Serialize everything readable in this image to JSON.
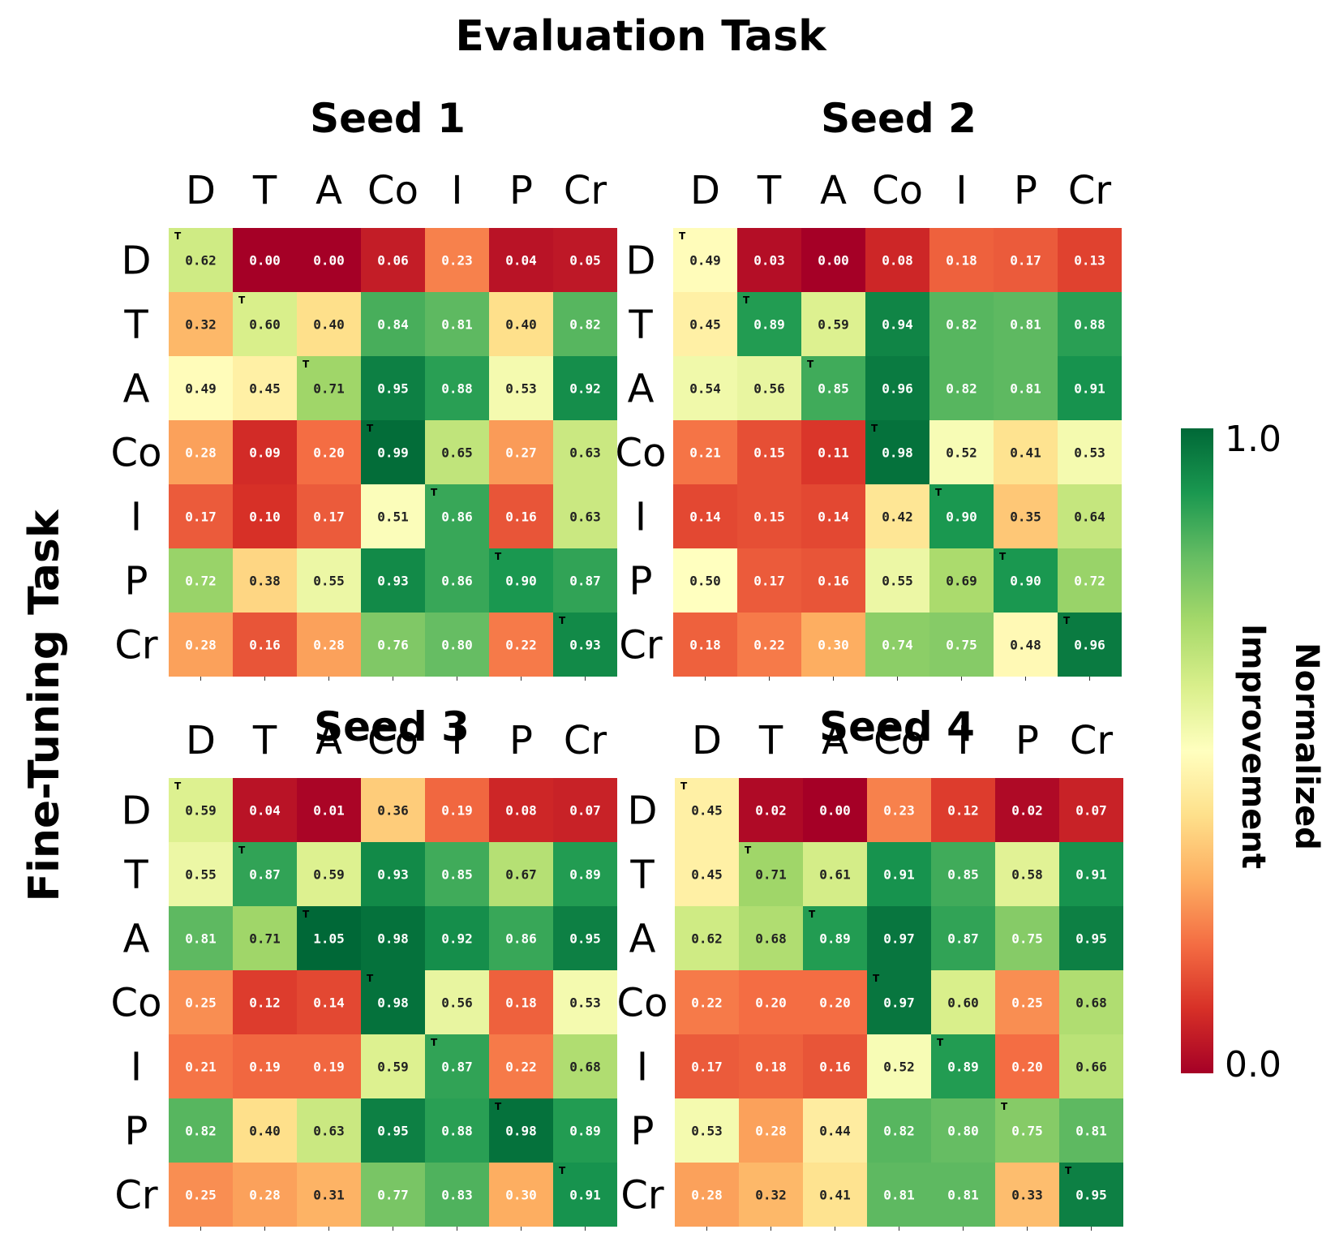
{
  "chart_data": {
    "type": "heatmap",
    "title": "Evaluation Task",
    "ylabel": "Fine-Tuning Task",
    "row_labels": [
      "D",
      "T",
      "A",
      "Co",
      "I",
      "P",
      "Cr"
    ],
    "col_labels": [
      "D",
      "T",
      "A",
      "Co",
      "I",
      "P",
      "Cr"
    ],
    "diagonal_marker": "T",
    "colorbar": {
      "label_line1": "Normalized",
      "label_line2": "Improvement",
      "min": 0.0,
      "max": 1.0,
      "min_label": "0.0",
      "max_label": "1.0",
      "colormap": "RdYlGn"
    },
    "panels": [
      {
        "title": "Seed 1",
        "values": [
          [
            "0.62",
            "0.00",
            "0.00",
            "0.06",
            "0.23",
            "0.04",
            "0.05"
          ],
          [
            "0.32",
            "0.60",
            "0.40",
            "0.84",
            "0.81",
            "0.40",
            "0.82"
          ],
          [
            "0.49",
            "0.45",
            "0.71",
            "0.95",
            "0.88",
            "0.53",
            "0.92"
          ],
          [
            "0.28",
            "0.09",
            "0.20",
            "0.99",
            "0.65",
            "0.27",
            "0.63"
          ],
          [
            "0.17",
            "0.10",
            "0.17",
            "0.51",
            "0.86",
            "0.16",
            "0.63"
          ],
          [
            "0.72",
            "0.38",
            "0.55",
            "0.93",
            "0.86",
            "0.90",
            "0.87"
          ],
          [
            "0.28",
            "0.16",
            "0.28",
            "0.76",
            "0.80",
            "0.22",
            "0.93"
          ]
        ]
      },
      {
        "title": "Seed 2",
        "values": [
          [
            "0.49",
            "0.03",
            "0.00",
            "0.08",
            "0.18",
            "0.17",
            "0.13"
          ],
          [
            "0.45",
            "0.89",
            "0.59",
            "0.94",
            "0.82",
            "0.81",
            "0.88"
          ],
          [
            "0.54",
            "0.56",
            "0.85",
            "0.96",
            "0.82",
            "0.81",
            "0.91"
          ],
          [
            "0.21",
            "0.15",
            "0.11",
            "0.98",
            "0.52",
            "0.41",
            "0.53"
          ],
          [
            "0.14",
            "0.15",
            "0.14",
            "0.42",
            "0.90",
            "0.35",
            "0.64"
          ],
          [
            "0.50",
            "0.17",
            "0.16",
            "0.55",
            "0.69",
            "0.90",
            "0.72"
          ],
          [
            "0.18",
            "0.22",
            "0.30",
            "0.74",
            "0.75",
            "0.48",
            "0.96"
          ]
        ]
      },
      {
        "title": "Seed 3",
        "values": [
          [
            "0.59",
            "0.04",
            "0.01",
            "0.36",
            "0.19",
            "0.08",
            "0.07"
          ],
          [
            "0.55",
            "0.87",
            "0.59",
            "0.93",
            "0.85",
            "0.67",
            "0.89"
          ],
          [
            "0.81",
            "0.71",
            "1.05",
            "0.98",
            "0.92",
            "0.86",
            "0.95"
          ],
          [
            "0.25",
            "0.12",
            "0.14",
            "0.98",
            "0.56",
            "0.18",
            "0.53"
          ],
          [
            "0.21",
            "0.19",
            "0.19",
            "0.59",
            "0.87",
            "0.22",
            "0.68"
          ],
          [
            "0.82",
            "0.40",
            "0.63",
            "0.95",
            "0.88",
            "0.98",
            "0.89"
          ],
          [
            "0.25",
            "0.28",
            "0.31",
            "0.77",
            "0.83",
            "0.30",
            "0.91"
          ]
        ]
      },
      {
        "title": "Seed 4",
        "values": [
          [
            "0.45",
            "0.02",
            "0.00",
            "0.23",
            "0.12",
            "0.02",
            "0.07"
          ],
          [
            "0.45",
            "0.71",
            "0.61",
            "0.91",
            "0.85",
            "0.58",
            "0.91"
          ],
          [
            "0.62",
            "0.68",
            "0.89",
            "0.97",
            "0.87",
            "0.75",
            "0.95"
          ],
          [
            "0.22",
            "0.20",
            "0.20",
            "0.97",
            "0.60",
            "0.25",
            "0.68"
          ],
          [
            "0.17",
            "0.18",
            "0.16",
            "0.52",
            "0.89",
            "0.20",
            "0.66"
          ],
          [
            "0.53",
            "0.28",
            "0.44",
            "0.82",
            "0.80",
            "0.75",
            "0.81"
          ],
          [
            "0.28",
            "0.32",
            "0.41",
            "0.81",
            "0.81",
            "0.33",
            "0.95"
          ]
        ]
      }
    ]
  }
}
